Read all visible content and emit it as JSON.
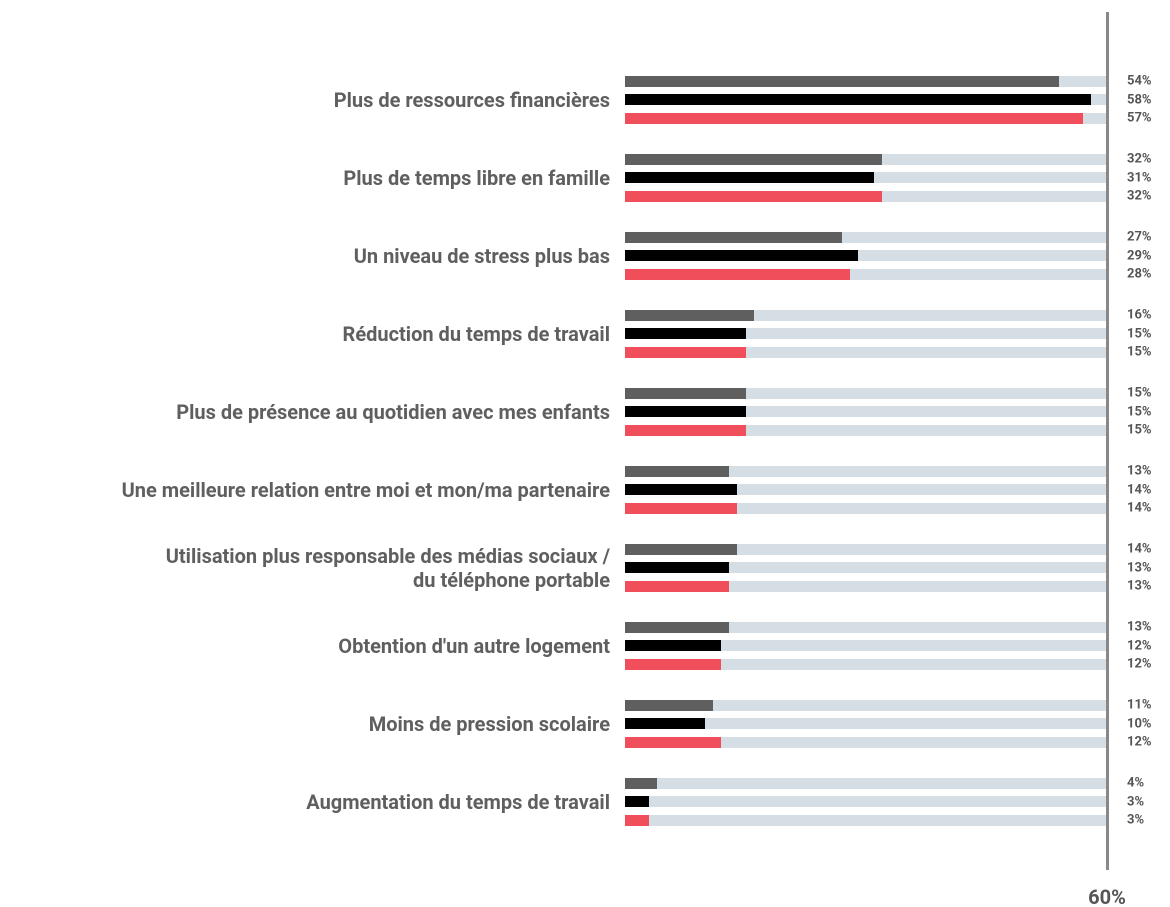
{
  "chart_data": {
    "type": "bar",
    "orientation": "horizontal",
    "categories": [
      "Plus de ressources financières",
      "Plus de temps libre en famille",
      "Un niveau de stress plus bas",
      "Réduction du temps de travail",
      "Plus de présence au quotidien avec mes enfants",
      "Une meilleure relation entre moi et mon/ma partenaire",
      "Utilisation plus responsable des médias sociaux /\ndu téléphone portable",
      "Obtention d'un autre logement",
      "Moins de pression scolaire",
      "Augmentation du temps de travail"
    ],
    "series": [
      {
        "color": "#5f5f5f",
        "values": [
          54,
          32,
          27,
          16,
          15,
          13,
          14,
          13,
          11,
          4
        ],
        "value_labels": [
          "54%",
          "32%",
          "27%",
          "16%",
          "15%",
          "13%",
          "14%",
          "13%",
          "11%",
          "4%"
        ]
      },
      {
        "color": "#000000",
        "values": [
          58,
          31,
          29,
          15,
          15,
          14,
          13,
          12,
          10,
          3
        ],
        "value_labels": [
          "58%",
          "31%",
          "29%",
          "15%",
          "15%",
          "14%",
          "13%",
          "12%",
          "10%",
          "3%"
        ]
      },
      {
        "color": "#f04e5a",
        "values": [
          57,
          32,
          28,
          15,
          15,
          14,
          13,
          12,
          12,
          3
        ],
        "value_labels": [
          "57%",
          "32%",
          "28%",
          "15%",
          "15%",
          "14%",
          "13%",
          "12%",
          "12%",
          "3%"
        ]
      }
    ],
    "xlim": [
      0,
      60
    ],
    "xticks": [
      {
        "value": 60,
        "label": "60%"
      }
    ]
  }
}
